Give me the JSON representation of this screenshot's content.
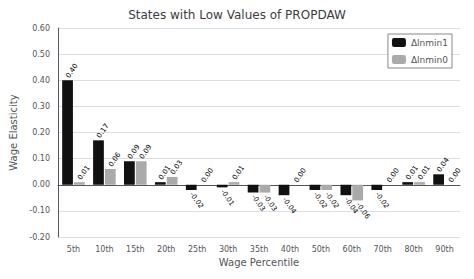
{
  "chart_data": {
    "type": "bar",
    "title": "States with Low Values of PROPDAW",
    "xlabel": "Wage Percentile",
    "ylabel": "Wage Elasticity",
    "categories": [
      "5th",
      "10th",
      "15th",
      "20th",
      "25th",
      "30th",
      "35th",
      "40th",
      "50th",
      "60th",
      "70th",
      "80th",
      "90th"
    ],
    "series": [
      {
        "name": "Δlnmin1",
        "color": "#111111",
        "values": [
          0.4,
          0.17,
          0.09,
          0.01,
          -0.02,
          -0.01,
          -0.03,
          -0.04,
          -0.02,
          -0.04,
          -0.02,
          0.01,
          0.04
        ],
        "value_labels": [
          "0.40",
          "0.17",
          "0.09",
          "0.01",
          "-0.02",
          "-0.01",
          "-0.03",
          "-0.04",
          "-0.02",
          "-0.04",
          "-0.02",
          "0.01",
          "0.04"
        ]
      },
      {
        "name": "Δlnmin0",
        "color": "#aaaaaa",
        "values": [
          0.01,
          0.06,
          0.09,
          0.03,
          0.0,
          0.01,
          -0.03,
          0.0,
          -0.02,
          -0.06,
          0.0,
          0.01,
          0.0
        ],
        "value_labels": [
          "0.01",
          "0.06",
          "0.09",
          "0.03",
          "0.00",
          "0.01",
          "-0.03",
          "0.00",
          "-0.02",
          "-0.06",
          "0.00",
          "0.01",
          "0.00"
        ]
      }
    ],
    "ylim": [
      -0.2,
      0.6
    ],
    "yticks": [
      {
        "value": -0.2,
        "label": "-0.20"
      },
      {
        "value": -0.1,
        "label": "-0.10"
      },
      {
        "value": 0.0,
        "label": "0.00"
      },
      {
        "value": 0.1,
        "label": "0.10"
      },
      {
        "value": 0.2,
        "label": "0.20"
      },
      {
        "value": 0.3,
        "label": "0.30"
      },
      {
        "value": 0.4,
        "label": "0.40"
      },
      {
        "value": 0.5,
        "label": "0.50"
      },
      {
        "value": 0.6,
        "label": "0.60"
      }
    ],
    "grid": true,
    "legend": "upper right",
    "data_labels": true
  }
}
